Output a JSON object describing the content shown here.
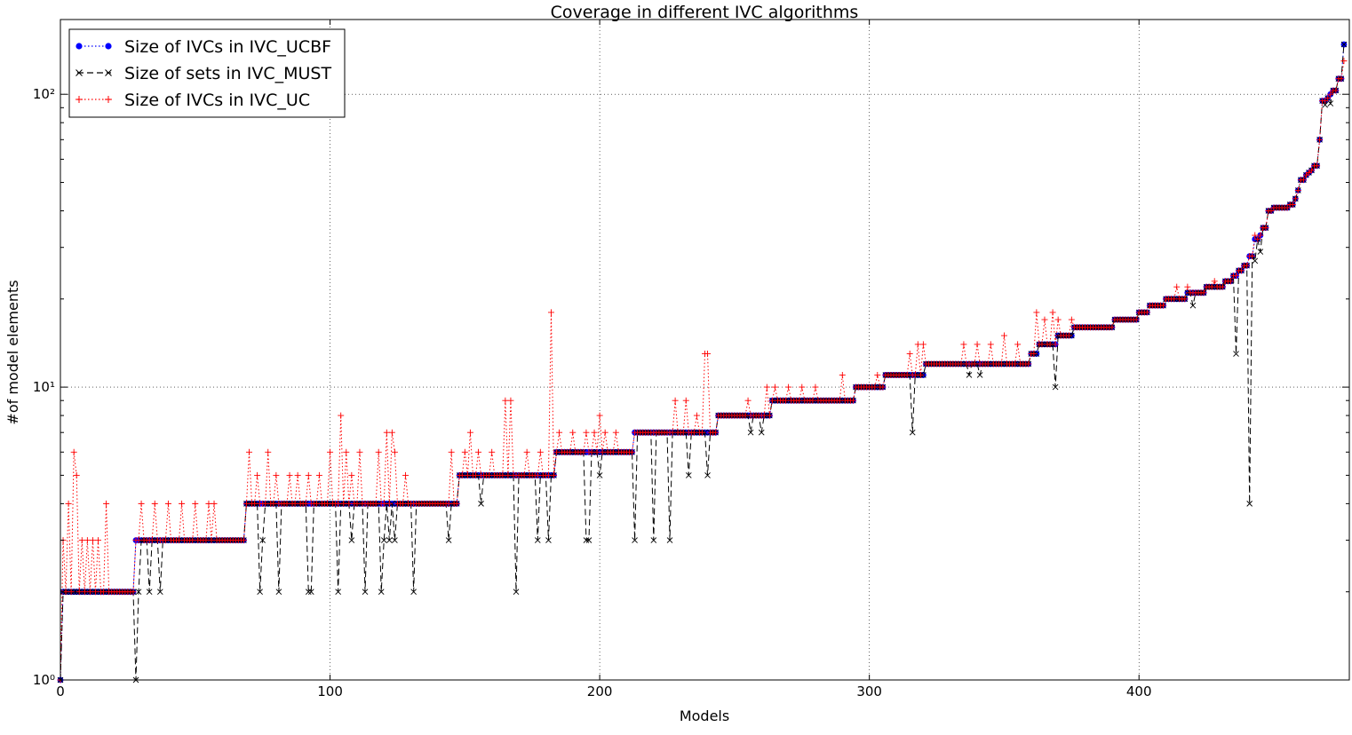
{
  "chart_data": {
    "type": "line",
    "title": "Coverage in different IVC algorithms",
    "xlabel": "Models",
    "ylabel": "#of model elements",
    "xlim": [
      0,
      478
    ],
    "ylim": [
      1,
      180
    ],
    "yscale": "log",
    "grid": true,
    "legend_position": "top-left",
    "x_ticks": [
      0,
      100,
      200,
      300,
      400
    ],
    "x_tick_labels": [
      "0",
      "100",
      "200",
      "300",
      "400"
    ],
    "y_ticks": [
      1,
      10,
      100
    ],
    "y_tick_labels": [
      "10⁰",
      "10¹",
      "10²"
    ],
    "series_order": [
      "Size of IVCs in IVC_UCBF",
      "Size of sets in IVC_MUST",
      "Size of IVCs in IVC_UC"
    ],
    "series_styles": [
      {
        "name": "Size of IVCs in IVC_UCBF",
        "color": "#0000ff",
        "linestyle": "dotted",
        "marker": "circle"
      },
      {
        "name": "Size of sets in IVC_MUST",
        "color": "#000000",
        "linestyle": "dashed",
        "marker": "x"
      },
      {
        "name": "Size of IVCs in IVC_UC",
        "color": "#ff0000",
        "linestyle": "dotted",
        "marker": "plus"
      }
    ],
    "ucbf_steps": [
      [
        0,
        1,
        1
      ],
      [
        1,
        27,
        2
      ],
      [
        28,
        68,
        3
      ],
      [
        69,
        147,
        4
      ],
      [
        148,
        183,
        5
      ],
      [
        184,
        212,
        6
      ],
      [
        213,
        243,
        7
      ],
      [
        244,
        263,
        8
      ],
      [
        264,
        294,
        9
      ],
      [
        295,
        305,
        10
      ],
      [
        306,
        320,
        11
      ],
      [
        321,
        359,
        12
      ],
      [
        360,
        362,
        13
      ],
      [
        363,
        369,
        14
      ],
      [
        370,
        375,
        15
      ],
      [
        376,
        390,
        16
      ],
      [
        391,
        399,
        17
      ],
      [
        400,
        403,
        18
      ],
      [
        404,
        409,
        19
      ],
      [
        410,
        417,
        20
      ],
      [
        418,
        424,
        21
      ],
      [
        425,
        431,
        22
      ],
      [
        432,
        434,
        23
      ],
      [
        435,
        436,
        24
      ],
      [
        437,
        438,
        25
      ],
      [
        439,
        440,
        26
      ],
      [
        441,
        442,
        28
      ],
      [
        443,
        444,
        32
      ],
      [
        445,
        445,
        33
      ],
      [
        446,
        447,
        35
      ],
      [
        448,
        449,
        40
      ],
      [
        450,
        455,
        41
      ],
      [
        456,
        457,
        42
      ],
      [
        458,
        458,
        44
      ],
      [
        459,
        459,
        47
      ],
      [
        460,
        461,
        51
      ],
      [
        462,
        462,
        53
      ],
      [
        463,
        463,
        54
      ],
      [
        464,
        464,
        55
      ],
      [
        465,
        466,
        57
      ],
      [
        467,
        467,
        70
      ],
      [
        468,
        469,
        95
      ],
      [
        470,
        470,
        97
      ],
      [
        471,
        471,
        100
      ],
      [
        472,
        473,
        103
      ],
      [
        474,
        475,
        113
      ],
      [
        476,
        476,
        148
      ]
    ],
    "must_dips": [
      [
        28,
        1
      ],
      [
        29,
        2
      ],
      [
        33,
        2
      ],
      [
        37,
        2
      ],
      [
        74,
        2
      ],
      [
        75,
        3
      ],
      [
        81,
        2
      ],
      [
        92,
        2
      ],
      [
        93,
        2
      ],
      [
        103,
        2
      ],
      [
        108,
        3
      ],
      [
        113,
        2
      ],
      [
        119,
        2
      ],
      [
        120,
        3
      ],
      [
        122,
        3
      ],
      [
        124,
        3
      ],
      [
        131,
        2
      ],
      [
        144,
        3
      ],
      [
        156,
        4
      ],
      [
        169,
        2
      ],
      [
        177,
        3
      ],
      [
        181,
        3
      ],
      [
        195,
        3
      ],
      [
        196,
        3
      ],
      [
        200,
        5
      ],
      [
        213,
        3
      ],
      [
        220,
        3
      ],
      [
        226,
        3
      ],
      [
        233,
        5
      ],
      [
        240,
        5
      ],
      [
        256,
        7
      ],
      [
        260,
        7
      ],
      [
        316,
        7
      ],
      [
        337,
        11
      ],
      [
        341,
        11
      ],
      [
        369,
        10
      ],
      [
        396,
        17
      ],
      [
        420,
        19
      ],
      [
        436,
        13
      ],
      [
        441,
        4
      ],
      [
        443,
        27
      ],
      [
        445,
        29
      ],
      [
        469,
        92
      ],
      [
        471,
        93
      ]
    ],
    "uc_spikes": [
      [
        1,
        3
      ],
      [
        3,
        4
      ],
      [
        5,
        6
      ],
      [
        6,
        5
      ],
      [
        8,
        3
      ],
      [
        10,
        3
      ],
      [
        12,
        3
      ],
      [
        14,
        3
      ],
      [
        17,
        4
      ],
      [
        30,
        4
      ],
      [
        35,
        4
      ],
      [
        40,
        4
      ],
      [
        45,
        4
      ],
      [
        50,
        4
      ],
      [
        55,
        4
      ],
      [
        57,
        4
      ],
      [
        70,
        6
      ],
      [
        73,
        5
      ],
      [
        77,
        6
      ],
      [
        80,
        5
      ],
      [
        85,
        5
      ],
      [
        88,
        5
      ],
      [
        92,
        5
      ],
      [
        96,
        5
      ],
      [
        100,
        6
      ],
      [
        104,
        8
      ],
      [
        106,
        6
      ],
      [
        108,
        5
      ],
      [
        111,
        6
      ],
      [
        118,
        6
      ],
      [
        121,
        7
      ],
      [
        123,
        7
      ],
      [
        124,
        6
      ],
      [
        128,
        5
      ],
      [
        145,
        6
      ],
      [
        150,
        6
      ],
      [
        152,
        7
      ],
      [
        155,
        6
      ],
      [
        160,
        6
      ],
      [
        165,
        9
      ],
      [
        167,
        9
      ],
      [
        173,
        6
      ],
      [
        178,
        6
      ],
      [
        182,
        18
      ],
      [
        185,
        7
      ],
      [
        190,
        7
      ],
      [
        195,
        7
      ],
      [
        198,
        7
      ],
      [
        200,
        8
      ],
      [
        202,
        7
      ],
      [
        206,
        7
      ],
      [
        215,
        7
      ],
      [
        222,
        7
      ],
      [
        228,
        9
      ],
      [
        232,
        9
      ],
      [
        236,
        8
      ],
      [
        239,
        13
      ],
      [
        240,
        13
      ],
      [
        250,
        8
      ],
      [
        255,
        9
      ],
      [
        262,
        10
      ],
      [
        265,
        10
      ],
      [
        270,
        10
      ],
      [
        275,
        10
      ],
      [
        280,
        10
      ],
      [
        290,
        11
      ],
      [
        303,
        11
      ],
      [
        315,
        13
      ],
      [
        318,
        14
      ],
      [
        320,
        14
      ],
      [
        335,
        14
      ],
      [
        340,
        14
      ],
      [
        345,
        14
      ],
      [
        350,
        15
      ],
      [
        355,
        14
      ],
      [
        362,
        18
      ],
      [
        365,
        17
      ],
      [
        368,
        18
      ],
      [
        370,
        17
      ],
      [
        375,
        17
      ],
      [
        414,
        22
      ],
      [
        418,
        22
      ],
      [
        428,
        23
      ],
      [
        443,
        33
      ],
      [
        476,
        130
      ]
    ]
  }
}
